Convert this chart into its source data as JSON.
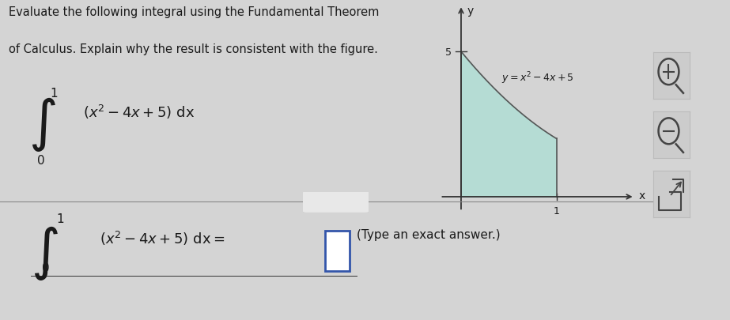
{
  "bg_color": "#d4d4d4",
  "text_color": "#1a1a1a",
  "title_line1": "Evaluate the following integral using the Fundamental Theorem",
  "title_line2": "of Calculus. Explain why the result is consistent with the figure.",
  "x_axis_label": "x",
  "y_axis_label": "y",
  "fill_color": "#b2ddd4",
  "fill_alpha": 0.9,
  "curve_color": "#555555",
  "axis_color": "#333333",
  "divider_color": "#888888",
  "answer_box_color": "#3355aa",
  "hint_text": "(Type an exact answer.)",
  "dots_button_text": "..."
}
